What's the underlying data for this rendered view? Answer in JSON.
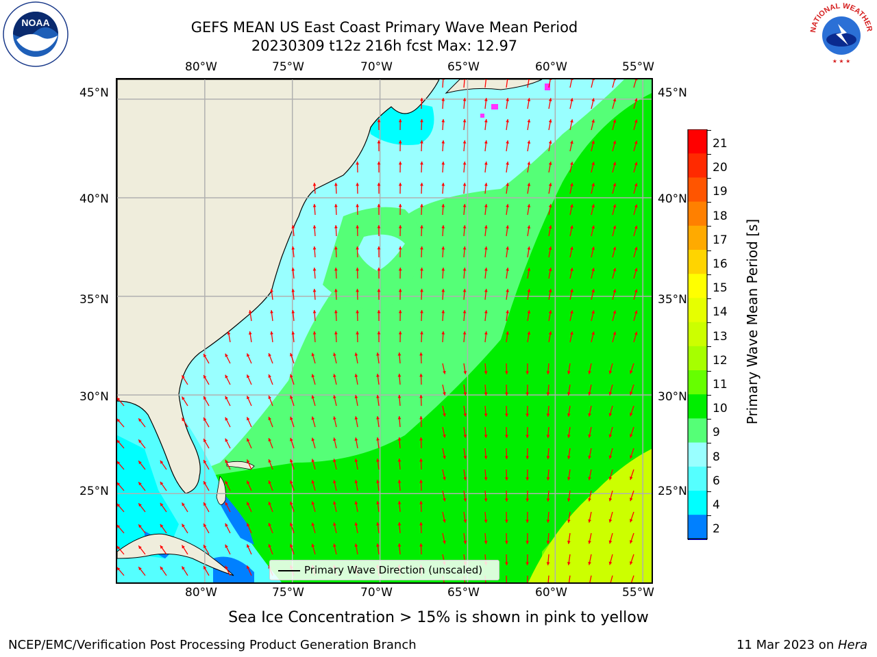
{
  "title_line1": "GEFS MEAN US East Coast Primary Wave Mean Period",
  "title_line2": "20230309 t12z 216h fcst   Max: 12.97",
  "lon_labels": [
    "80°W",
    "75°W",
    "70°W",
    "65°W",
    "60°W",
    "55°W"
  ],
  "lat_labels": [
    "45°N",
    "40°N",
    "35°N",
    "30°N",
    "25°N"
  ],
  "legend_label": "Primary Wave Direction (unscaled)",
  "colorbar": {
    "label": "Primary Wave Mean Period [s]",
    "ticks": [
      "21",
      "20",
      "19",
      "18",
      "17",
      "16",
      "15",
      "14",
      "13",
      "12",
      "11",
      "10",
      "9",
      "8",
      "6",
      "4",
      "2"
    ],
    "colors": [
      "#ff0000",
      "#ff2a00",
      "#ff5500",
      "#ff8000",
      "#ffaa00",
      "#ffd400",
      "#ffff00",
      "#e6ff00",
      "#ccff00",
      "#a6ff00",
      "#66ff00",
      "#00ee00",
      "#55ff77",
      "#99ffff",
      "#55ffff",
      "#00ffff",
      "#0080ff"
    ],
    "under_color": "#0000ff"
  },
  "note": "Sea Ice Concentration > 15% is shown in pink to yellow",
  "footer_left": "NCEP/EMC/Verification Post Processing Product Generation Branch",
  "footer_right_prefix": "11 Mar 2023 on ",
  "footer_right_host": "Hera",
  "logos": {
    "left": "NOAA",
    "right": "NATIONAL WEATHER SERVICE"
  },
  "map": {
    "extent_lon": [
      -85,
      -54.5
    ],
    "extent_lat": [
      20.5,
      46
    ],
    "land_color": "#efeddc",
    "grid_color": "#b0b0b0",
    "arrow_color": "#ff0000"
  }
}
